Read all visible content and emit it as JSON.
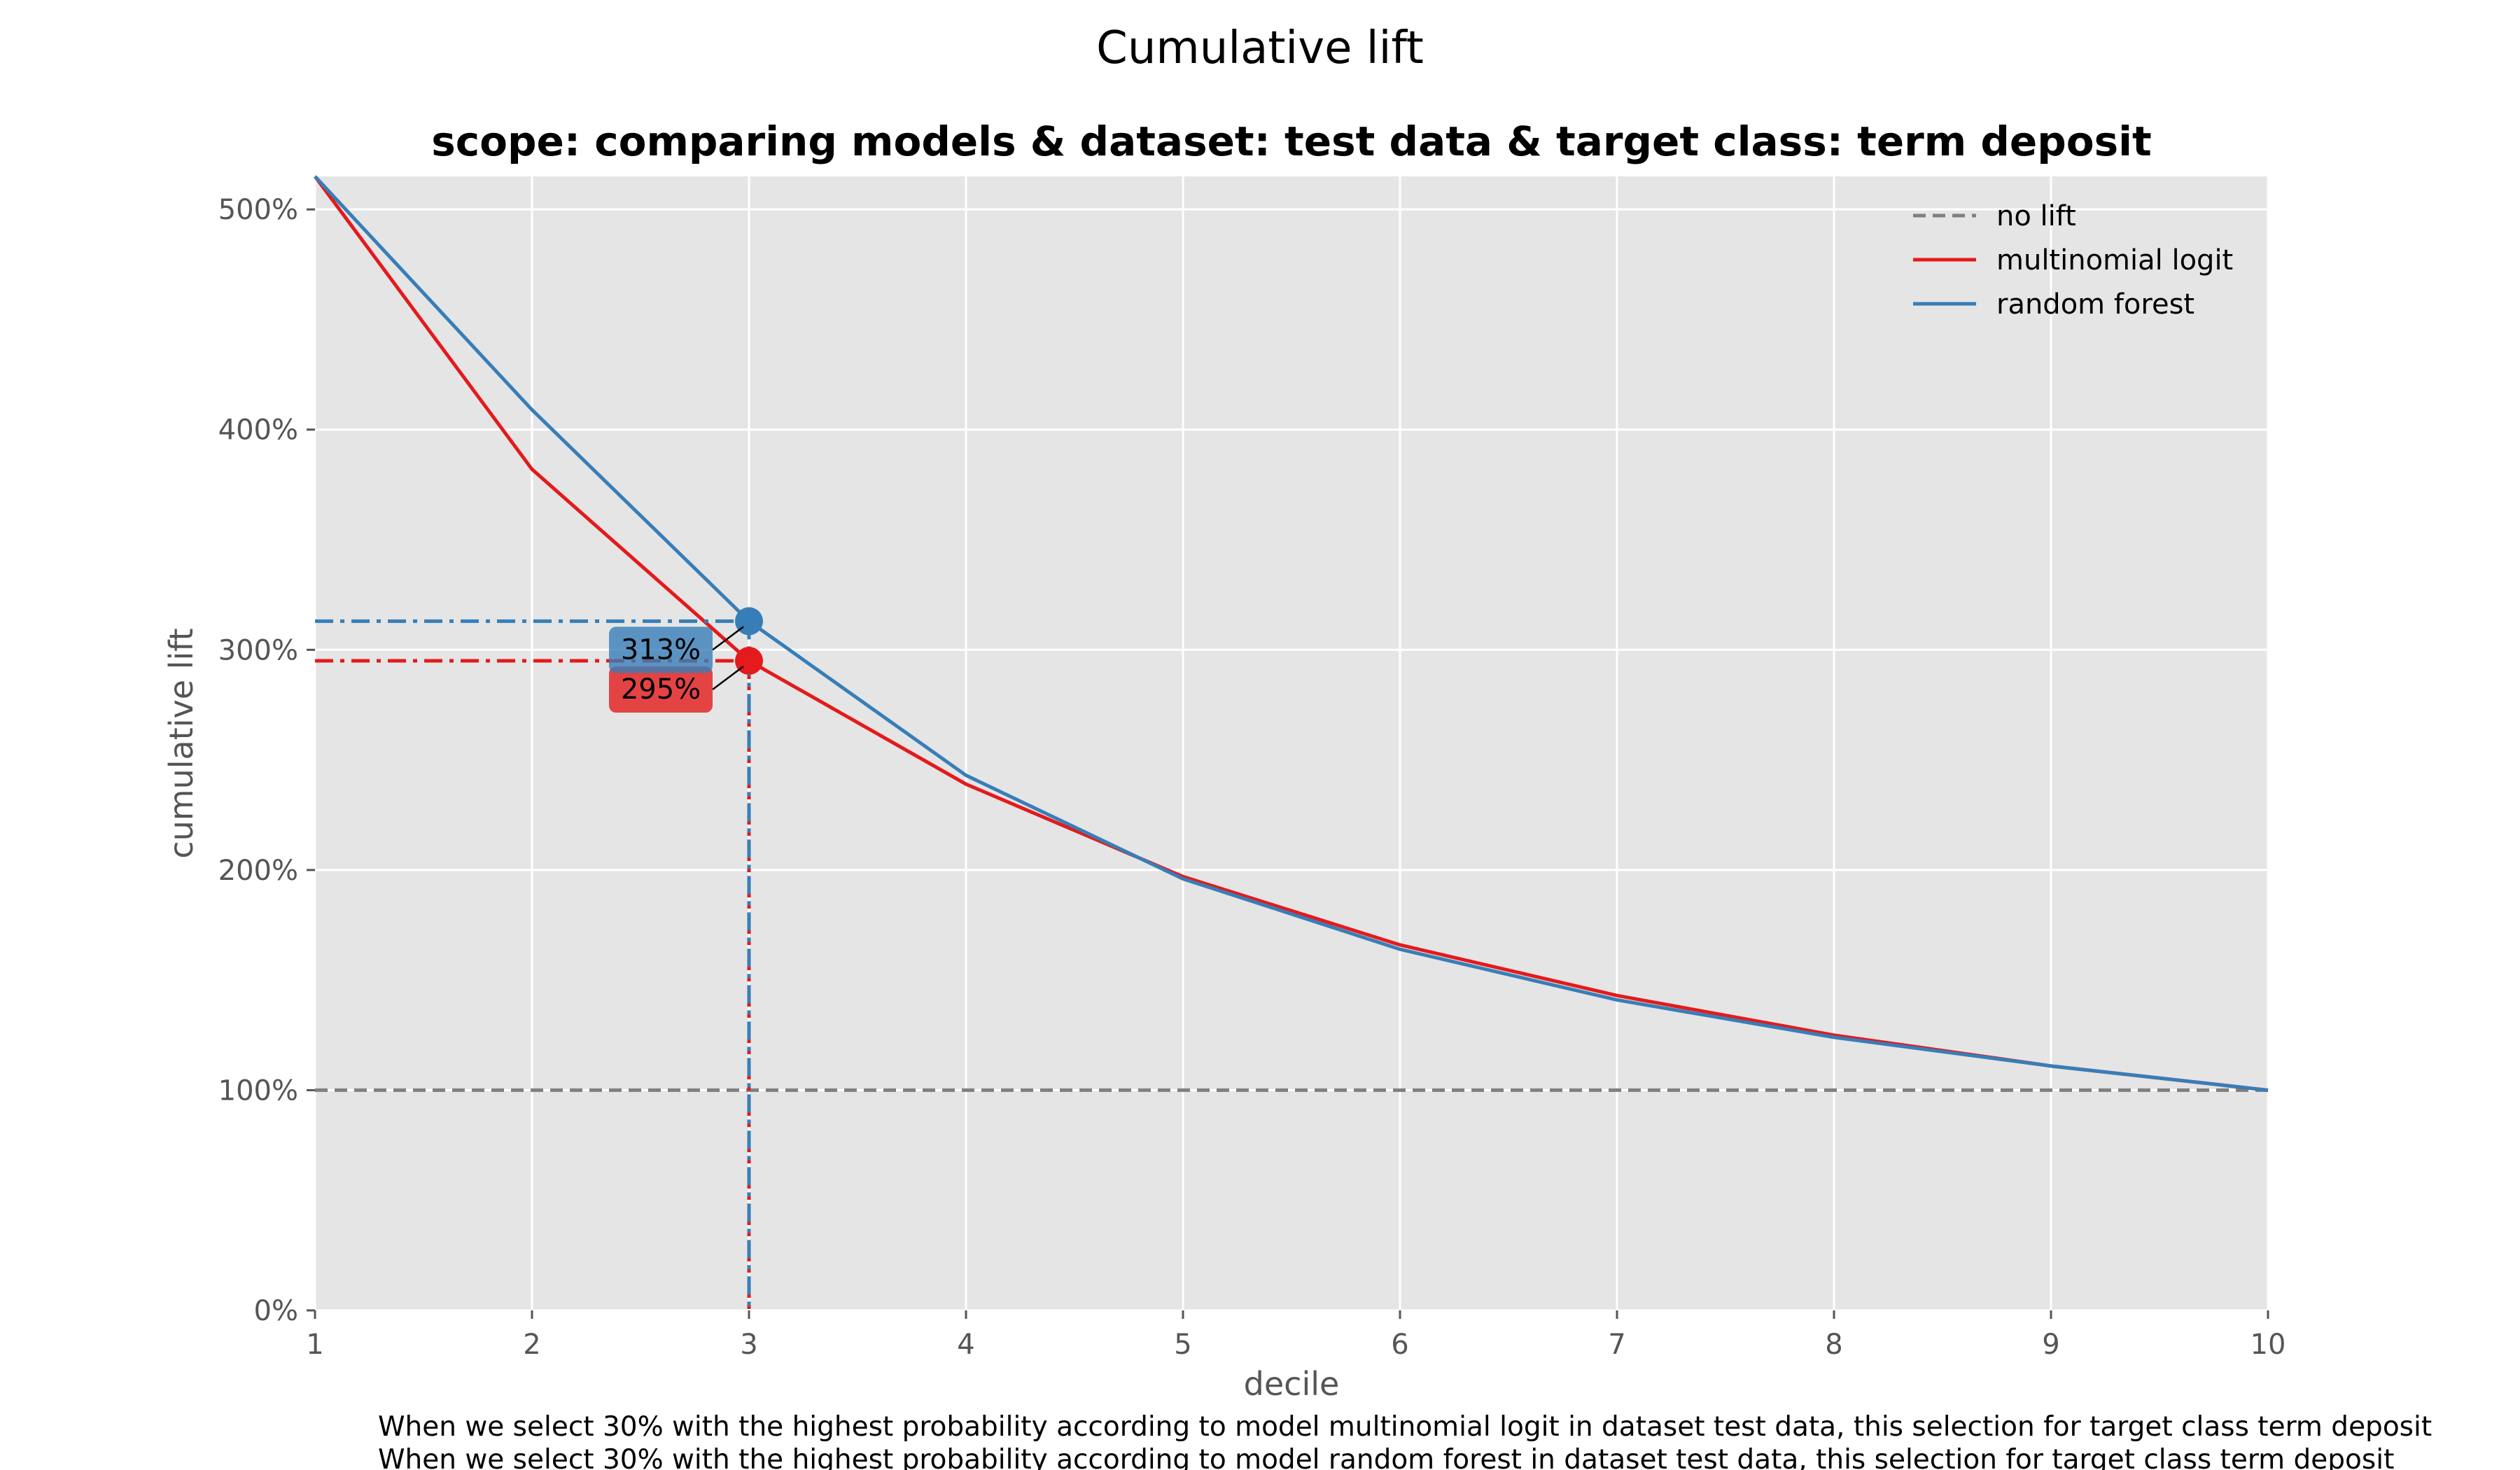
{
  "figure": {
    "suptitle": "Cumulative lift",
    "footnotes": [
      "When we select 30% with the highest probability according to model multinomial logit in dataset test data, this selection for target class term deposit",
      "When we select 30% with the highest probability according to model random forest in dataset test data, this selection for target class term deposit"
    ]
  },
  "chart_data": {
    "type": "line",
    "title": "scope: comparing models & dataset: test data & target class: term deposit",
    "xlabel": "decile",
    "ylabel": "cumulative lift",
    "x": [
      1,
      2,
      3,
      4,
      5,
      6,
      7,
      8,
      9,
      10
    ],
    "xlim": [
      1,
      10
    ],
    "ylim": [
      0,
      515
    ],
    "y_ticks": [
      0,
      100,
      200,
      300,
      400,
      500
    ],
    "y_tick_labels": [
      "0%",
      "100%",
      "200%",
      "300%",
      "400%",
      "500%"
    ],
    "x_tick_labels": [
      "1",
      "2",
      "3",
      "4",
      "5",
      "6",
      "7",
      "8",
      "9",
      "10"
    ],
    "grid": true,
    "legend_position": "top-right",
    "series": [
      {
        "name": "no lift",
        "values": [
          100,
          100,
          100,
          100,
          100,
          100,
          100,
          100,
          100,
          100
        ],
        "color": "#808080",
        "style": "dashed"
      },
      {
        "name": "multinomial logit",
        "values": [
          515,
          382,
          295,
          239,
          197,
          166,
          143,
          125,
          111,
          100
        ],
        "color": "#e41a1c",
        "style": "solid"
      },
      {
        "name": "random forest",
        "values": [
          515,
          409,
          313,
          243,
          196,
          164,
          141,
          124,
          111,
          100
        ],
        "color": "#377eb8",
        "style": "solid"
      }
    ],
    "annotations": [
      {
        "series": "multinomial logit",
        "x": 3,
        "y": 295,
        "label": "295%",
        "color": "#e41a1c"
      },
      {
        "series": "random forest",
        "x": 3,
        "y": 313,
        "label": "313%",
        "color": "#377eb8"
      }
    ],
    "colors": {
      "plot_background": "#e5e5e5",
      "grid": "#ffffff",
      "axis_text": "#555555"
    }
  }
}
